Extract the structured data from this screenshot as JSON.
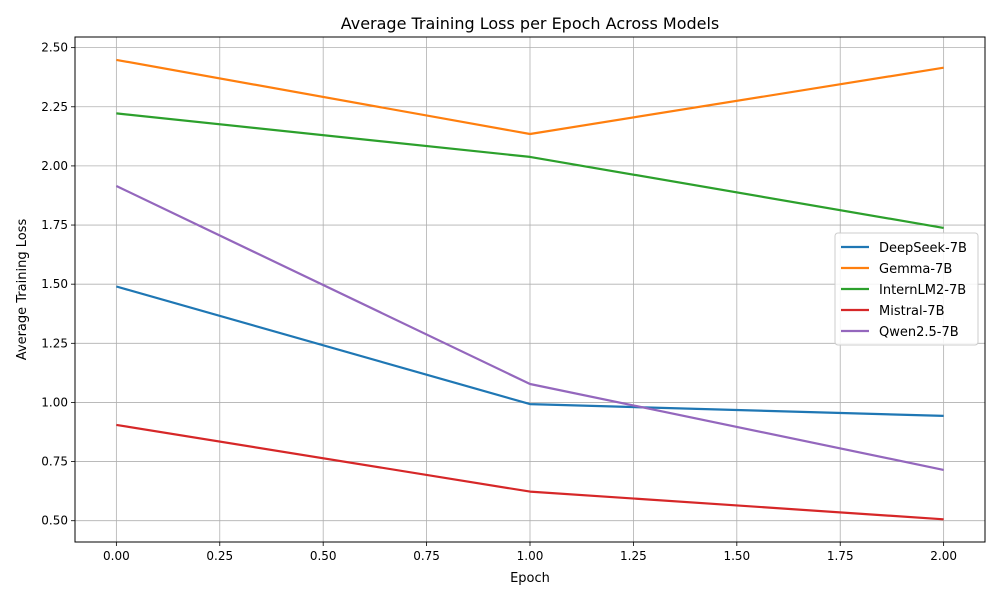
{
  "chart_data": {
    "type": "line",
    "title": "Average Training Loss per Epoch Across Models",
    "xlabel": "Epoch",
    "ylabel": "Average Training Loss",
    "x": [
      0,
      1,
      2
    ],
    "xlim": [
      -0.1,
      2.1
    ],
    "ylim": [
      0.41,
      2.545
    ],
    "xticks": [
      "0.00",
      "0.25",
      "0.50",
      "0.75",
      "1.00",
      "1.25",
      "1.50",
      "1.75",
      "2.00"
    ],
    "yticks": [
      "0.50",
      "0.75",
      "1.00",
      "1.25",
      "1.50",
      "1.75",
      "2.00",
      "2.25",
      "2.50"
    ],
    "grid": true,
    "legend_position": "center-right",
    "series": [
      {
        "name": "DeepSeek-7B",
        "color": "#1f77b4",
        "values": [
          1.49,
          0.993,
          0.943
        ]
      },
      {
        "name": "Gemma-7B",
        "color": "#ff7f0e",
        "values": [
          2.448,
          2.135,
          2.415
        ]
      },
      {
        "name": "InternLM2-7B",
        "color": "#2ca02c",
        "values": [
          2.222,
          2.038,
          1.738
        ]
      },
      {
        "name": "Mistral-7B",
        "color": "#d62728",
        "values": [
          0.905,
          0.623,
          0.506
        ]
      },
      {
        "name": "Qwen2.5-7B",
        "color": "#9467bd",
        "values": [
          1.915,
          1.078,
          0.715
        ]
      }
    ]
  }
}
